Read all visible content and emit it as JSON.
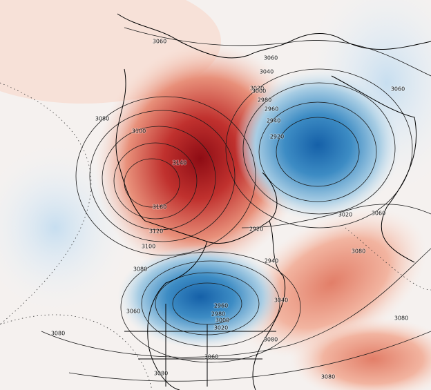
{
  "contour_labels": [
    "3060",
    "3060",
    "3040",
    "3020",
    "3000",
    "2980",
    "2960",
    "2940",
    "2920",
    "3080",
    "3100",
    "3140",
    "3160",
    "3120",
    "3100",
    "3080",
    "2920",
    "3020",
    "3060",
    "3060",
    "3080",
    "2940",
    "3040",
    "3080",
    "3060",
    "3080",
    "2960",
    "2980",
    "3000",
    "3020",
    "3080",
    "3060",
    "3080",
    "3080"
  ]
}
